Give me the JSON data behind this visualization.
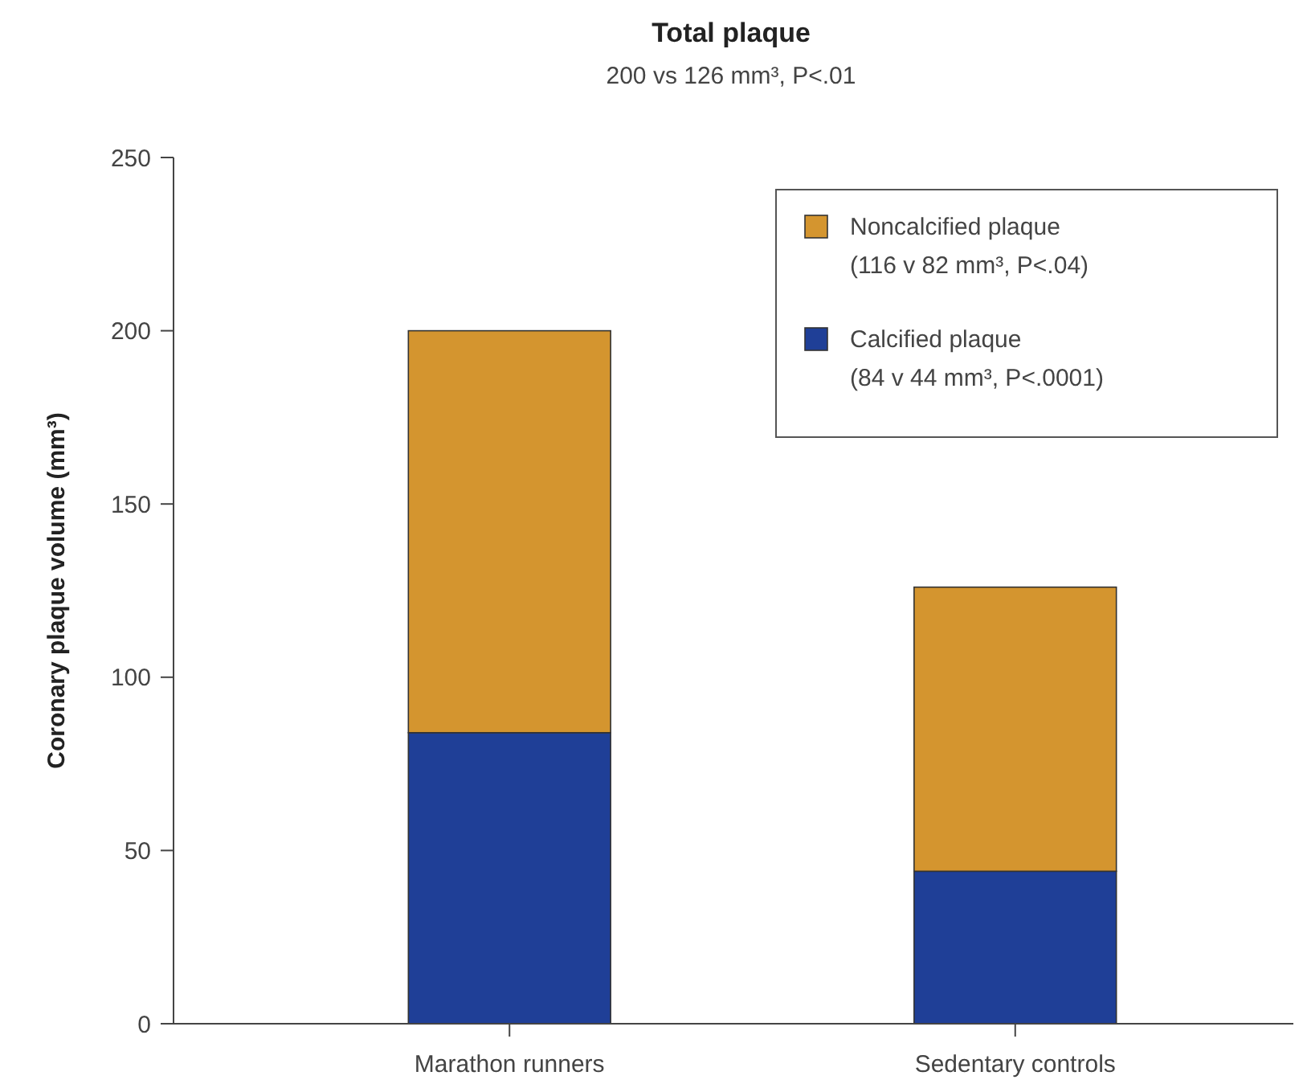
{
  "chart_data": {
    "type": "bar",
    "title": "Total plaque",
    "subtitle": "200 vs 126 mm³, P<.01",
    "ylabel": "Coronary plaque volume (mm³)",
    "categories": [
      "Marathon runners",
      "Sedentary controls"
    ],
    "stacked": true,
    "ylim": [
      0,
      250
    ],
    "yticks": [
      0,
      50,
      100,
      150,
      200,
      250
    ],
    "grid": false,
    "legend": "top right",
    "series": [
      {
        "name": "Calcified plaque (84 v 44 mm³, P<.0001)",
        "color": "#1f3f97",
        "values": [
          84,
          44
        ]
      },
      {
        "name": "Noncalcified plaque (116 v 82 mm³, P<.04)",
        "color": "#d4952f",
        "values": [
          116,
          82
        ]
      }
    ]
  }
}
